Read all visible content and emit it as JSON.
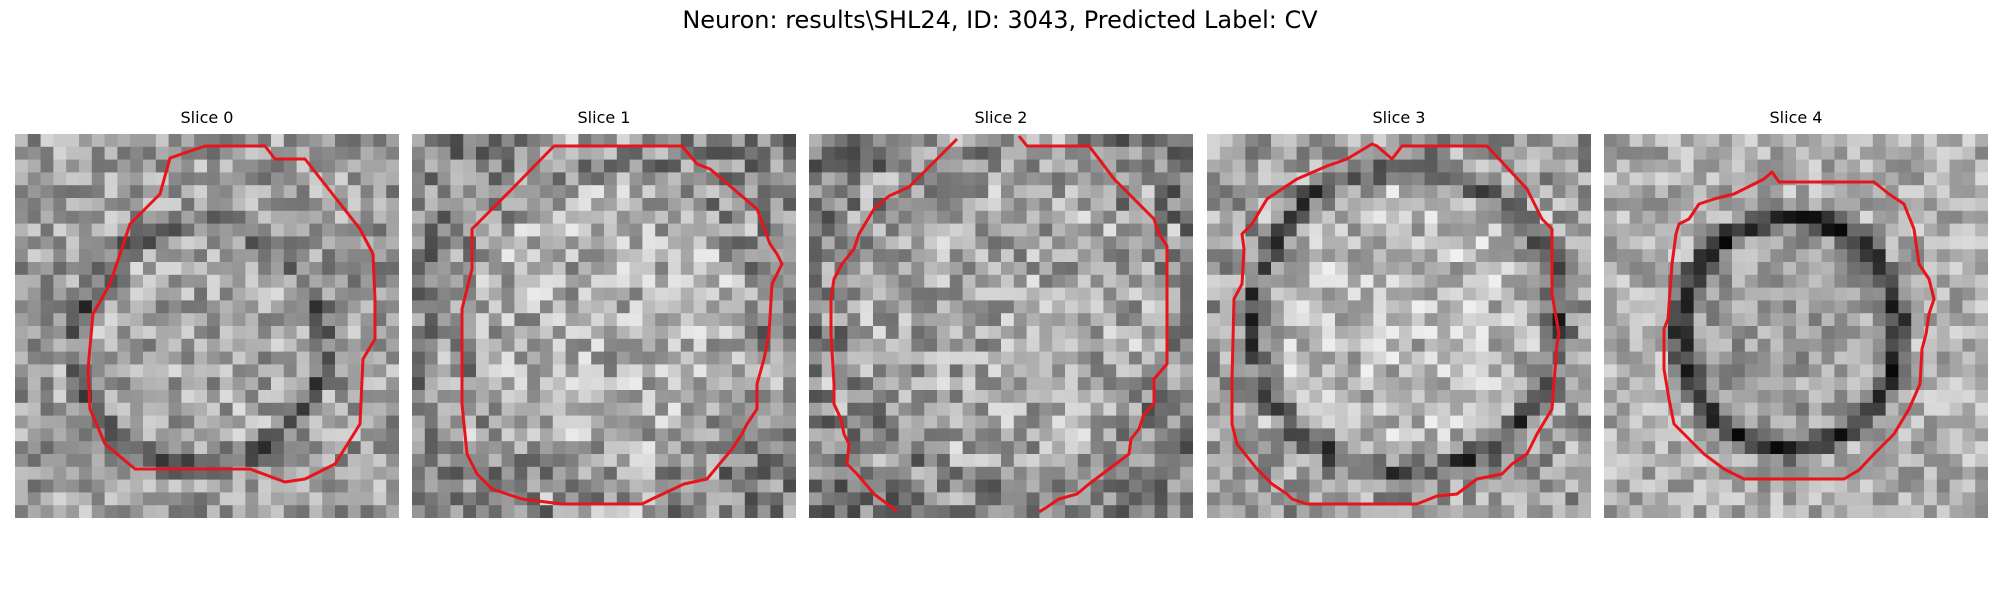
{
  "figure": {
    "title": "Neuron: results\\SHL24, ID: 3043, Predicted Label: CV"
  },
  "slices": [
    {
      "title": "Slice 0"
    },
    {
      "title": "Slice 1"
    },
    {
      "title": "Slice 2"
    },
    {
      "title": "Slice 3"
    },
    {
      "title": "Slice 4"
    }
  ],
  "colors": {
    "contour": "#e8141b"
  }
}
